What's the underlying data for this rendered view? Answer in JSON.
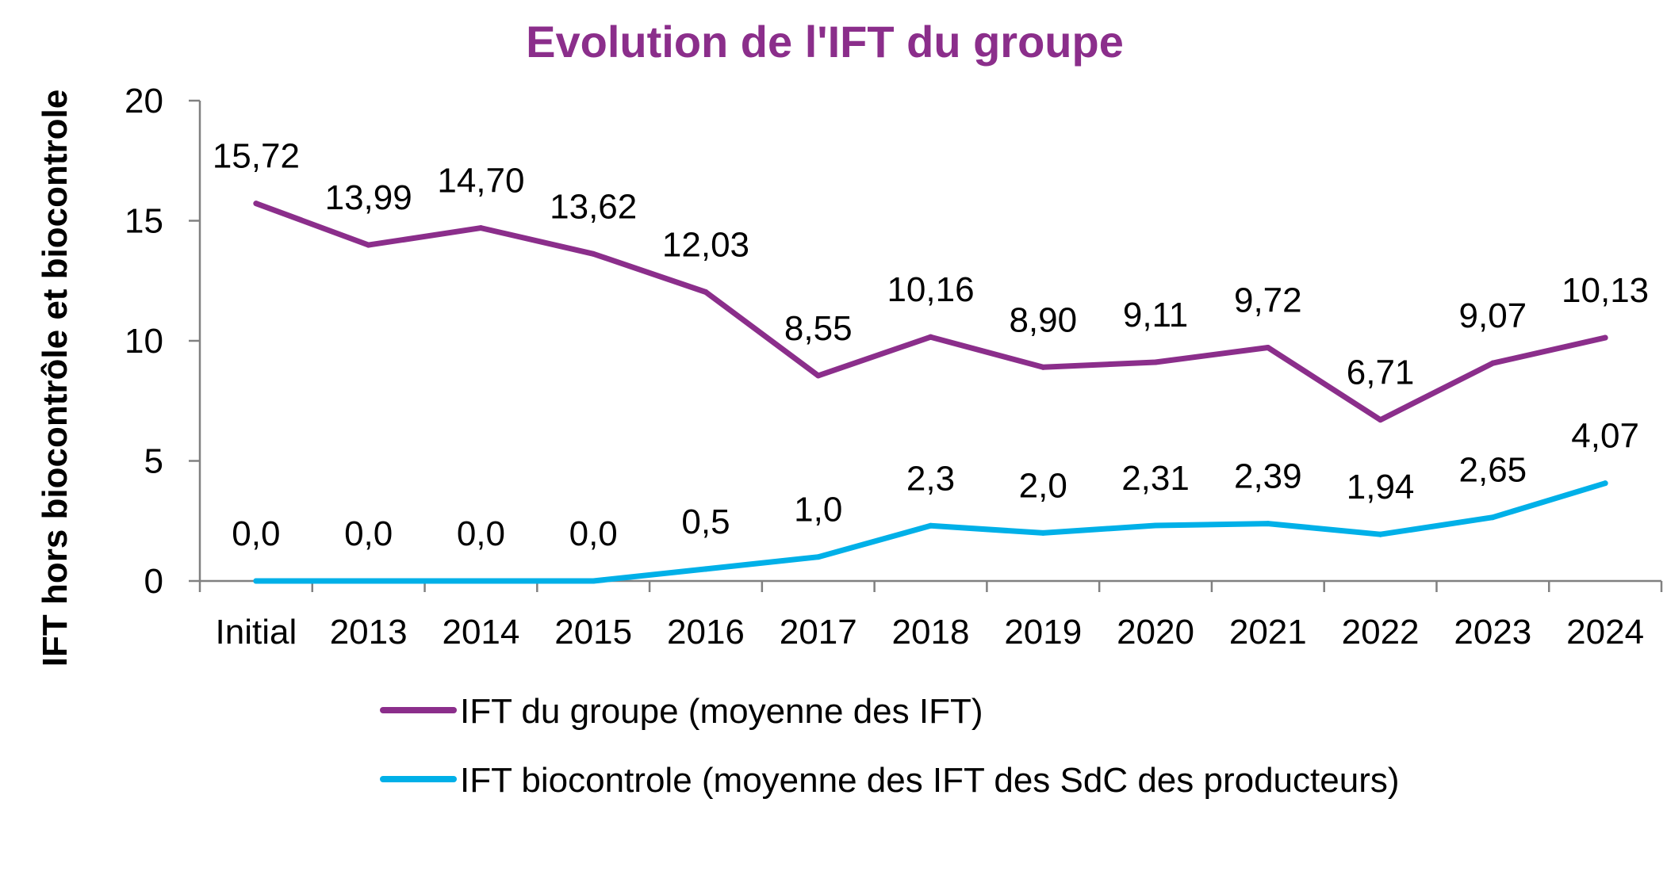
{
  "chart_data": {
    "type": "line",
    "title": "Evolution de l'IFT du groupe",
    "xlabel": "",
    "ylabel": "IFT  hors biocontrôle et biocontrole",
    "categories": [
      "Initial",
      "2013",
      "2014",
      "2015",
      "2016",
      "2017",
      "2018",
      "2019",
      "2020",
      "2021",
      "2022",
      "2023",
      "2024"
    ],
    "ylim": [
      0,
      20
    ],
    "yticks": [
      "0",
      "5",
      "10",
      "15",
      "20"
    ],
    "grid": false,
    "legend_position": "bottom",
    "series": [
      {
        "name": "IFT du groupe (moyenne des IFT)",
        "color": "#8B2E8B",
        "values": [
          15.72,
          13.99,
          14.7,
          13.62,
          12.03,
          8.55,
          10.16,
          8.9,
          9.11,
          9.72,
          6.71,
          9.07,
          10.13
        ],
        "labels": [
          "15,72",
          "13,99",
          "14,70",
          "13,62",
          "12,03",
          "8,55",
          "10,16",
          "8,90",
          "9,11",
          "9,72",
          "6,71",
          "9,07",
          "10,13"
        ]
      },
      {
        "name": "IFT biocontrole (moyenne des IFT des SdC des producteurs)",
        "color": "#00B0E8",
        "values": [
          0.0,
          0.0,
          0.0,
          0.0,
          0.5,
          1.0,
          2.3,
          2.0,
          2.31,
          2.39,
          1.94,
          2.65,
          4.07
        ],
        "labels": [
          "0,0",
          "0,0",
          "0,0",
          "0,0",
          "0,5",
          "1,0",
          "2,3",
          "2,0",
          "2,31",
          "2,39",
          "1,94",
          "2,65",
          "4,07"
        ]
      }
    ]
  },
  "colors": {
    "title": "#8B2E8B",
    "axis": "#808080"
  }
}
